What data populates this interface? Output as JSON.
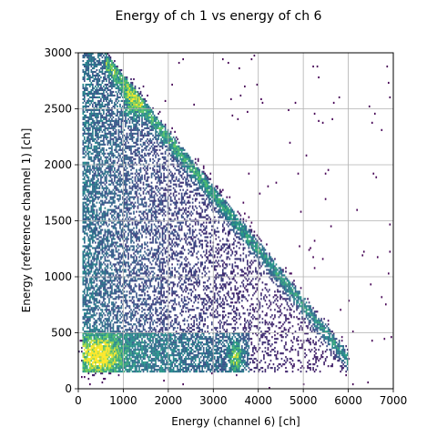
{
  "chart_data": {
    "type": "heatmap",
    "title": "Energy of ch 1 vs energy of ch 6",
    "xlabel": "Energy (channel 6) [ch]",
    "ylabel": "Energy (reference channel 1) [ch]",
    "xlim": [
      0,
      7000
    ],
    "ylim": [
      0,
      3000
    ],
    "xticks": [
      0,
      1000,
      2000,
      3000,
      4000,
      5000,
      6000,
      7000
    ],
    "yticks": [
      0,
      500,
      1000,
      1500,
      2000,
      2500,
      3000
    ],
    "grid": true,
    "colormap": "viridis",
    "colors": {
      "grid": "#b0b0b0",
      "cmap_low": "#440154",
      "cmap_mid": "#21918c",
      "cmap_high": "#fde725"
    },
    "features": [
      {
        "kind": "dense_region",
        "x_range": [
          100,
          6000
        ],
        "y_range": [
          150,
          3000
        ],
        "description_level": "low"
      },
      {
        "kind": "diagonal_band",
        "from": [
          650,
          2900
        ],
        "to": [
          5900,
          300
        ],
        "level": "medium"
      },
      {
        "kind": "hot_spot",
        "center": [
          500,
          300
        ],
        "level": "high"
      },
      {
        "kind": "hot_spot",
        "center": [
          3500,
          300
        ],
        "level": "medium"
      },
      {
        "kind": "low_energy_band",
        "y_range": [
          150,
          500
        ],
        "level": "medium"
      }
    ]
  }
}
